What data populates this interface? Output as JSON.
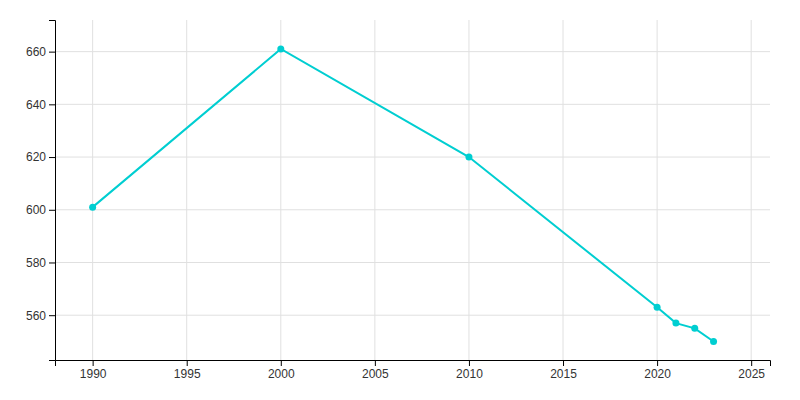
{
  "chart_data": {
    "type": "line",
    "x": [
      1990,
      2000,
      2010,
      2020,
      2021,
      2022,
      2023
    ],
    "values": [
      601,
      661,
      620,
      563,
      557,
      555,
      550
    ],
    "color": "#00CED1",
    "marker": "circle",
    "xlim": [
      1988,
      2026
    ],
    "ylim": [
      543,
      672
    ],
    "xticks": [
      1990,
      1995,
      2000,
      2005,
      2010,
      2015,
      2020,
      2025
    ],
    "yticks": [
      560,
      580,
      600,
      620,
      640,
      660
    ],
    "grid": true
  }
}
